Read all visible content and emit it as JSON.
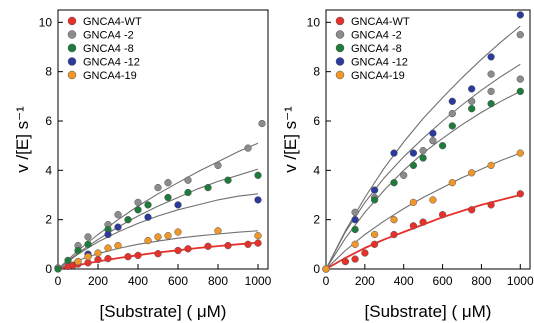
{
  "chart_data": [
    {
      "type": "scatter",
      "xlabel": "[Substrate] ( μM)",
      "ylabel": "v /[E] s⁻¹",
      "xlim": [
        0,
        1050
      ],
      "ylim": [
        0,
        10.5
      ],
      "xticks": [
        0,
        200,
        400,
        600,
        800,
        1000
      ],
      "yticks": [
        0,
        2,
        4,
        6,
        8,
        10
      ],
      "grid": false,
      "legend_position": "top-left",
      "series": [
        {
          "name": "GNCA4-WT",
          "color": "#e8302b",
          "fit_color": "#e8302b",
          "x": [
            0,
            50,
            75,
            100,
            150,
            200,
            250,
            350,
            400,
            500,
            600,
            650,
            750,
            850,
            950,
            1000
          ],
          "y": [
            0.02,
            0.1,
            0.15,
            0.2,
            0.25,
            0.38,
            0.42,
            0.5,
            0.55,
            0.62,
            0.75,
            0.82,
            0.92,
            0.95,
            1.0,
            1.05
          ],
          "fit_x": [
            0,
            50,
            100,
            200,
            300,
            400,
            500,
            600,
            700,
            800,
            900,
            1000
          ],
          "fit_y": [
            0,
            0.08,
            0.16,
            0.31,
            0.44,
            0.56,
            0.67,
            0.76,
            0.85,
            0.93,
            1.0,
            1.07
          ]
        },
        {
          "name": "GNCA4 -2",
          "color": "#8c8c8c",
          "fit_color": "#707070",
          "x": [
            0,
            100,
            150,
            250,
            300,
            400,
            500,
            550,
            650,
            800,
            950,
            1020
          ],
          "y": [
            0.05,
            0.95,
            1.3,
            1.8,
            2.2,
            2.7,
            3.3,
            3.5,
            3.6,
            4.2,
            4.9,
            5.9
          ],
          "fit_x": [
            0,
            100,
            200,
            300,
            400,
            500,
            600,
            700,
            800,
            900,
            1000
          ],
          "fit_y": [
            0,
            0.75,
            1.4,
            2.0,
            2.55,
            3.05,
            3.5,
            3.95,
            4.35,
            4.75,
            5.1
          ]
        },
        {
          "name": "GNCA4 -8",
          "color": "#1e7b3c",
          "fit_color": "#707070",
          "x": [
            0,
            50,
            100,
            150,
            250,
            350,
            400,
            450,
            550,
            650,
            750,
            850,
            1000
          ],
          "y": [
            0.0,
            0.35,
            0.75,
            1.0,
            1.6,
            2.0,
            2.4,
            2.6,
            2.9,
            3.1,
            3.3,
            3.6,
            3.8
          ],
          "fit_x": [
            0,
            100,
            200,
            300,
            400,
            500,
            600,
            700,
            800,
            900,
            1000
          ],
          "fit_y": [
            0,
            0.65,
            1.2,
            1.7,
            2.15,
            2.55,
            2.9,
            3.25,
            3.55,
            3.8,
            4.05
          ]
        },
        {
          "name": "GNCA4 -12",
          "color": "#2c3a9e",
          "fit_color": "#707070",
          "x": [
            100,
            150,
            250,
            300,
            450,
            600,
            1000
          ],
          "y": [
            0.3,
            0.6,
            1.4,
            1.7,
            2.1,
            2.6,
            2.8
          ],
          "fit_x": [
            0,
            100,
            200,
            300,
            400,
            500,
            600,
            700,
            800,
            900,
            1000
          ],
          "fit_y": [
            0,
            0.6,
            1.1,
            1.5,
            1.85,
            2.15,
            2.4,
            2.6,
            2.8,
            2.95,
            3.05
          ]
        },
        {
          "name": "GNCA4-19",
          "color": "#f0972a",
          "fit_color": "#707070",
          "x": [
            100,
            150,
            200,
            250,
            300,
            450,
            500,
            550,
            600,
            800,
            1000
          ],
          "y": [
            0.3,
            0.5,
            0.65,
            0.85,
            0.95,
            1.15,
            1.3,
            1.35,
            1.5,
            1.55,
            1.35
          ],
          "fit_x": [
            0,
            100,
            200,
            300,
            400,
            500,
            600,
            700,
            800,
            900,
            1000
          ],
          "fit_y": [
            0,
            0.35,
            0.62,
            0.83,
            1.0,
            1.13,
            1.25,
            1.34,
            1.42,
            1.49,
            1.55
          ]
        }
      ]
    },
    {
      "type": "scatter",
      "xlabel": "[Substrate] ( μM)",
      "ylabel": "v /[E] s⁻¹",
      "xlim": [
        0,
        1050
      ],
      "ylim": [
        0,
        10.5
      ],
      "xticks": [
        0,
        200,
        400,
        600,
        800,
        1000
      ],
      "yticks": [
        0,
        2,
        4,
        6,
        8,
        10
      ],
      "grid": false,
      "legend_position": "top-left",
      "series": [
        {
          "name": "GNCA4-WT",
          "color": "#e8302b",
          "fit_color": "#e8302b",
          "x": [
            0,
            100,
            150,
            200,
            250,
            350,
            450,
            500,
            600,
            750,
            850,
            1000
          ],
          "y": [
            0.0,
            0.3,
            0.4,
            0.65,
            1.0,
            1.4,
            1.75,
            1.9,
            2.2,
            2.4,
            2.6,
            3.05
          ],
          "fit_x": [
            0,
            100,
            200,
            300,
            400,
            500,
            600,
            700,
            800,
            900,
            1000
          ],
          "fit_y": [
            0,
            0.45,
            0.85,
            1.2,
            1.5,
            1.8,
            2.1,
            2.35,
            2.6,
            2.8,
            3.0
          ]
        },
        {
          "name": "GNCA4 -2",
          "color": "#8c8c8c",
          "fit_color": "#707070",
          "x": [
            0,
            150,
            250,
            400,
            500,
            550,
            650,
            750,
            850,
            850,
            1000,
            1000
          ],
          "y": [
            0.0,
            2.3,
            2.9,
            3.8,
            4.8,
            5.2,
            6.3,
            6.8,
            7.2,
            7.9,
            7.7,
            9.5
          ],
          "fit_x": [
            0,
            100,
            200,
            300,
            400,
            500,
            600,
            700,
            800,
            900,
            1000
          ],
          "fit_y": [
            0,
            1.5,
            2.7,
            3.7,
            4.55,
            5.3,
            6.0,
            6.65,
            7.25,
            7.8,
            8.3
          ]
        },
        {
          "name": "GNCA4 -8",
          "color": "#1e7b3c",
          "fit_color": "#707070",
          "x": [
            0,
            150,
            250,
            350,
            450,
            500,
            600,
            650,
            750,
            850,
            1000
          ],
          "y": [
            0.0,
            1.6,
            2.8,
            3.5,
            4.2,
            4.5,
            5.0,
            5.8,
            6.5,
            6.7,
            7.2
          ],
          "fit_x": [
            0,
            100,
            200,
            300,
            400,
            500,
            600,
            700,
            800,
            900,
            1000
          ],
          "fit_y": [
            0,
            1.25,
            2.3,
            3.2,
            4.0,
            4.7,
            5.3,
            5.85,
            6.35,
            6.8,
            7.2
          ]
        },
        {
          "name": "GNCA4 -12",
          "color": "#2c3a9e",
          "fit_color": "#707070",
          "x": [
            0,
            150,
            250,
            350,
            450,
            550,
            650,
            750,
            850,
            1000
          ],
          "y": [
            0.0,
            2.0,
            3.2,
            4.7,
            4.7,
            5.5,
            6.8,
            7.3,
            8.6,
            10.3
          ],
          "fit_x": [
            0,
            100,
            200,
            300,
            400,
            500,
            600,
            700,
            800,
            900,
            1000
          ],
          "fit_y": [
            0,
            1.55,
            2.9,
            4.1,
            5.15,
            6.1,
            6.95,
            7.75,
            8.5,
            9.2,
            9.85
          ]
        },
        {
          "name": "GNCA4-19",
          "color": "#f0972a",
          "fit_color": "#707070",
          "x": [
            0,
            150,
            250,
            350,
            450,
            550,
            650,
            750,
            850,
            1000
          ],
          "y": [
            0.0,
            1.0,
            1.4,
            2.0,
            2.7,
            2.8,
            3.5,
            3.9,
            4.2,
            4.7
          ],
          "fit_x": [
            0,
            100,
            200,
            300,
            400,
            500,
            600,
            700,
            800,
            900,
            1000
          ],
          "fit_y": [
            0,
            0.75,
            1.4,
            1.95,
            2.45,
            2.9,
            3.3,
            3.7,
            4.05,
            4.4,
            4.7
          ]
        }
      ]
    }
  ]
}
